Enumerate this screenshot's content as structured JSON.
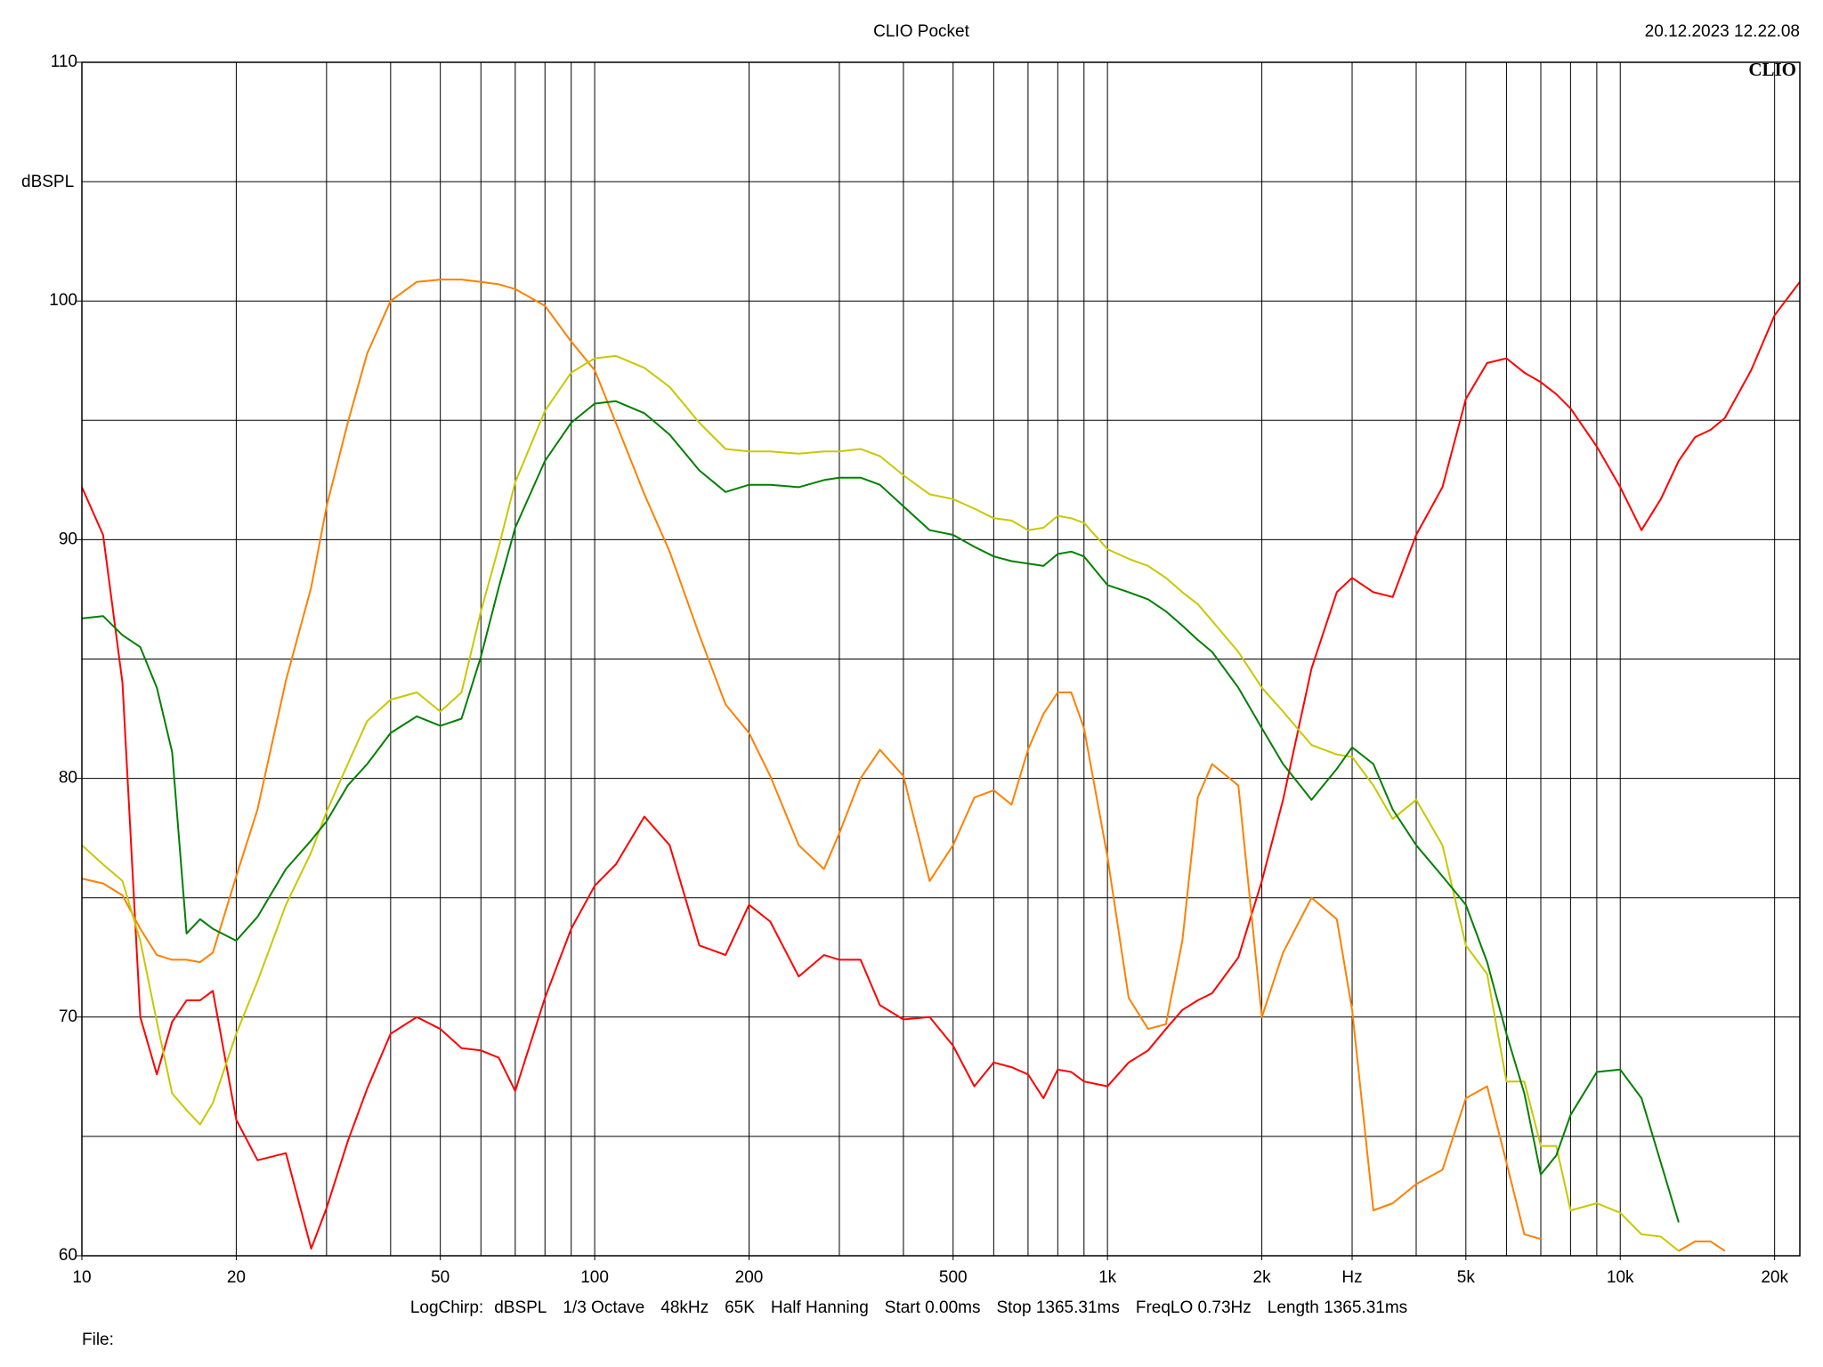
{
  "chart_data": {
    "type": "line",
    "title": "CLIO Pocket",
    "timestamp": "20.12.2023 12.22.08",
    "logo": "CLIO",
    "ylabel": "dBSPL",
    "footer": [
      "LogChirp:",
      "dBSPL",
      "1/3 Octave",
      "48kHz",
      "65K",
      "Half Hanning",
      "Start 0.00ms",
      "Stop 1365.31ms",
      "FreqLO 0.73Hz",
      "Length 1365.31ms"
    ],
    "file_label": "File:",
    "xscale": "log",
    "xlim": [
      10,
      22400
    ],
    "ylim": [
      60,
      110
    ],
    "yticks": [
      60,
      70,
      80,
      90,
      100,
      110
    ],
    "yminor": [
      65,
      75,
      85,
      95,
      105
    ],
    "xticks": [
      10,
      20,
      50,
      100,
      200,
      500,
      {
        "value": 1000,
        "label": "1k"
      },
      {
        "value": 2000,
        "label": "2k"
      },
      {
        "value": 3000,
        "label": "Hz"
      },
      {
        "value": 5000,
        "label": "5k"
      },
      {
        "value": 10000,
        "label": "10k"
      },
      {
        "value": 20000,
        "label": "20k"
      }
    ],
    "xgrid": [
      20,
      30,
      40,
      50,
      60,
      70,
      80,
      90,
      100,
      200,
      300,
      400,
      500,
      600,
      700,
      800,
      900,
      1000,
      2000,
      3000,
      4000,
      5000,
      6000,
      7000,
      8000,
      9000,
      10000,
      20000
    ],
    "grid": true,
    "x": [
      10,
      11,
      12,
      13,
      14,
      15,
      16,
      17,
      18,
      20,
      22,
      25,
      28,
      30,
      33,
      36,
      40,
      45,
      50,
      55,
      60,
      65,
      70,
      80,
      90,
      100,
      110,
      125,
      140,
      160,
      180,
      200,
      220,
      250,
      280,
      300,
      330,
      360,
      400,
      450,
      500,
      550,
      600,
      650,
      700,
      750,
      800,
      850,
      900,
      1000,
      1100,
      1200,
      1300,
      1400,
      1500,
      1600,
      1800,
      2000,
      2200,
      2500,
      2800,
      3000,
      3300,
      3600,
      4000,
      4500,
      5000,
      5500,
      6000,
      6500,
      7000,
      7500,
      8000,
      9000,
      10000,
      11000,
      12000,
      13000,
      14000,
      15000,
      16000,
      18000,
      20000,
      22400
    ],
    "series": [
      {
        "color": "#ff0000",
        "values": [
          92.2,
          90.2,
          84,
          70,
          67.6,
          69.8,
          70.7,
          70.7,
          71.1,
          65.7,
          64.0,
          64.3,
          60.3,
          62.0,
          64.8,
          67.0,
          69.3,
          70.0,
          69.5,
          68.7,
          68.6,
          68.3,
          66.9,
          70.8,
          73.7,
          75.5,
          76.4,
          78.4,
          77.2,
          73.0,
          72.6,
          74.7,
          74.0,
          71.7,
          72.6,
          72.4,
          72.4,
          70.5,
          69.9,
          70.0,
          68.8,
          67.1,
          68.1,
          67.9,
          67.6,
          66.6,
          67.8,
          67.7,
          67.3,
          67.1,
          68.1,
          68.6,
          69.5,
          70.3,
          70.7,
          71.0,
          72.5,
          75.7,
          79.1,
          84.6,
          87.8,
          88.4,
          87.8,
          87.6,
          90.2,
          92.2,
          95.9,
          97.4,
          97.6,
          97.0,
          96.6,
          96.1,
          95.5,
          93.9,
          92.2,
          90.4,
          91.7,
          93.3,
          94.3,
          94.6,
          95.1,
          97.1,
          99.4,
          100.8
        ]
      },
      {
        "color": "#ff8000",
        "values": [
          75.8,
          75.6,
          75.1,
          73.7,
          72.6,
          72.4,
          72.4,
          72.3,
          72.7,
          75.9,
          78.7,
          84.1,
          88.0,
          91.4,
          94.9,
          97.8,
          100,
          100.8,
          100.9,
          100.9,
          100.8,
          100.7,
          100.5,
          99.8,
          98.3,
          97.1,
          94.9,
          91.9,
          89.5,
          86.0,
          83.1,
          81.9,
          80.1,
          77.2,
          76.2,
          77.7,
          80.0,
          81.2,
          80.1,
          75.7,
          77.2,
          79.2,
          79.5,
          78.9,
          81.2,
          82.7,
          83.6,
          83.6,
          82.1,
          76.7,
          70.8,
          69.5,
          69.7,
          73.2,
          79.2,
          80.6,
          79.7,
          70.0,
          72.7,
          75.0,
          74.1,
          70.3,
          61.9,
          62.2,
          63.0,
          63.6,
          66.6,
          67.1,
          63.9,
          60.9,
          60.7,
          null,
          null,
          null,
          null,
          null,
          null,
          60.2,
          60.6,
          60.6,
          60.2,
          null,
          null,
          null
        ]
      },
      {
        "color": "#c8c800",
        "values": [
          77.2,
          76.4,
          75.7,
          73.2,
          69.8,
          66.8,
          66.1,
          65.5,
          66.4,
          69.3,
          71.5,
          74.7,
          76.9,
          78.6,
          80.6,
          82.4,
          83.3,
          83.6,
          82.8,
          83.6,
          87.0,
          89.7,
          92.4,
          95.4,
          97.0,
          97.6,
          97.7,
          97.2,
          96.4,
          94.9,
          93.8,
          93.7,
          93.7,
          93.6,
          93.7,
          93.7,
          93.8,
          93.5,
          92.7,
          91.9,
          91.7,
          91.3,
          90.9,
          90.8,
          90.4,
          90.5,
          91.0,
          90.9,
          90.7,
          89.6,
          89.2,
          88.9,
          88.4,
          87.8,
          87.3,
          86.6,
          85.3,
          83.8,
          82.8,
          81.4,
          81.0,
          80.9,
          79.7,
          78.3,
          79.1,
          77.2,
          73.0,
          71.8,
          67.3,
          67.3,
          64.6,
          64.6,
          61.9,
          62.2,
          61.8,
          60.9,
          60.8,
          60.2,
          null,
          null,
          null,
          null,
          null,
          null
        ]
      },
      {
        "color": "#008000",
        "values": [
          86.7,
          86.8,
          86.0,
          85.5,
          83.8,
          81.1,
          73.5,
          74.1,
          73.7,
          73.2,
          74.2,
          76.2,
          77.4,
          78.2,
          79.7,
          80.6,
          81.9,
          82.6,
          82.2,
          82.5,
          85.1,
          88.0,
          90.5,
          93.3,
          94.9,
          95.7,
          95.8,
          95.3,
          94.4,
          92.9,
          92.0,
          92.3,
          92.3,
          92.2,
          92.5,
          92.6,
          92.6,
          92.3,
          91.4,
          90.4,
          90.2,
          89.7,
          89.3,
          89.1,
          89.0,
          88.9,
          89.4,
          89.5,
          89.3,
          88.1,
          87.8,
          87.5,
          87.0,
          86.4,
          85.8,
          85.3,
          83.8,
          82.1,
          80.6,
          79.1,
          80.4,
          81.3,
          80.6,
          78.7,
          77.2,
          75.9,
          74.7,
          72.3,
          69.3,
          66.8,
          63.4,
          64.2,
          65.9,
          67.7,
          67.8,
          66.6,
          63.9,
          61.4,
          null,
          null,
          null,
          null,
          null,
          null
        ]
      }
    ]
  }
}
